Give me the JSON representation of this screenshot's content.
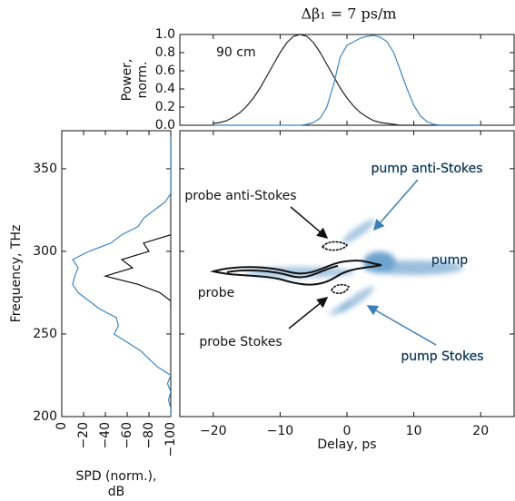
{
  "chart_data": [
    {
      "type": "line",
      "title": "Δβ₁ = 7 ps/m",
      "ylabel": [
        "Power,",
        "norm."
      ],
      "annotation": "90 cm",
      "xlim": [
        -25,
        25
      ],
      "xticks": [
        {
          "value": -20,
          "label": "−20"
        },
        {
          "value": -10,
          "label": "−10"
        },
        0,
        10,
        20
      ],
      "ylim": [
        0,
        1
      ],
      "yticks": [
        {
          "value": 0,
          "label": "0.0"
        },
        0.2,
        0.4,
        0.6,
        0.8,
        {
          "value": 1,
          "label": "1.0"
        }
      ],
      "x": [
        -20,
        -19,
        -18,
        -17,
        -16,
        -15,
        -14,
        -13,
        -12,
        -11,
        -10,
        -9,
        -8,
        -7,
        -6,
        -5,
        -4,
        -3,
        -2,
        -1,
        0,
        1,
        2,
        3,
        4,
        5,
        6,
        7,
        8,
        9,
        10,
        11,
        12,
        13,
        14,
        15,
        16,
        17,
        18,
        19,
        20
      ],
      "series": [
        {
          "color": "#222222",
          "values": [
            0.02,
            0.03,
            0.05,
            0.09,
            0.14,
            0.21,
            0.3,
            0.41,
            0.54,
            0.67,
            0.8,
            0.91,
            0.98,
            1,
            0.98,
            0.91,
            0.8,
            0.67,
            0.54,
            0.41,
            0.3,
            0.21,
            0.14,
            0.09,
            0.05,
            0.03,
            0.02,
            0.01,
            0,
            0,
            0,
            0,
            0,
            0,
            0,
            0,
            0,
            0,
            0,
            0,
            0
          ]
        },
        {
          "color": "#3f86bf",
          "values": [
            0,
            0,
            0,
            0,
            0,
            0,
            0,
            0,
            0,
            0,
            0,
            0,
            0,
            0,
            0.01,
            0.03,
            0.08,
            0.2,
            0.45,
            0.75,
            0.88,
            0.92,
            0.96,
            0.98,
            0.99,
            0.97,
            0.92,
            0.8,
            0.6,
            0.4,
            0.22,
            0.1,
            0.04,
            0.01,
            0,
            0,
            0,
            0,
            0,
            0,
            0
          ]
        }
      ]
    },
    {
      "type": "line",
      "xlabel": [
        "SPD (norm.),",
        "dB"
      ],
      "ylabel": "Frequency, THz",
      "xlim": [
        0,
        -100
      ],
      "xticks": [
        0,
        {
          "value": -20,
          "label": "−20"
        },
        {
          "value": -40,
          "label": "−40"
        },
        {
          "value": -60,
          "label": "−60"
        },
        {
          "value": -80,
          "label": "−80"
        },
        {
          "value": -100,
          "label": "−100"
        }
      ],
      "ylim": [
        200,
        373
      ],
      "yticks": [
        200,
        250,
        300,
        350
      ],
      "y": [
        200,
        205,
        210,
        215,
        220,
        225,
        230,
        235,
        240,
        245,
        250,
        255,
        260,
        265,
        270,
        275,
        280,
        285,
        290,
        295,
        300,
        305,
        310,
        315,
        320,
        325,
        330,
        335,
        340,
        345,
        350,
        355,
        360,
        365,
        370
      ],
      "series": [
        {
          "color": "#3f86bf",
          "values": [
            -100,
            -100,
            -98,
            -100,
            -97,
            -100,
            -88,
            -80,
            -72,
            -60,
            -48,
            -52,
            -50,
            -35,
            -25,
            -15,
            -10,
            -12,
            -15,
            -10,
            -25,
            -45,
            -55,
            -70,
            -75,
            -85,
            -95,
            -100,
            -100,
            -100,
            -100,
            -100,
            -100,
            -100,
            -100
          ]
        },
        {
          "color": "#111111",
          "values": [
            null,
            null,
            null,
            null,
            null,
            null,
            null,
            null,
            null,
            null,
            null,
            null,
            null,
            -100,
            -100,
            -90,
            -70,
            -40,
            -65,
            -55,
            -80,
            -75,
            -100,
            null,
            null,
            null,
            null,
            null,
            null,
            null,
            null,
            null,
            null,
            null,
            null
          ]
        }
      ]
    },
    {
      "type": "spectrogram",
      "xlabel": "Delay, ps",
      "xlim": [
        -25,
        25
      ],
      "xticks": [
        {
          "value": -20,
          "label": "−20"
        },
        {
          "value": -10,
          "label": "−10"
        },
        0,
        10,
        20
      ],
      "ylim": [
        200,
        373
      ],
      "yticks": [
        200,
        250,
        300,
        350
      ],
      "annotations": [
        {
          "text": "pump anti-Stokes",
          "color": "#3a7fb5"
        },
        {
          "text": "probe anti-Stokes",
          "color": "#111111"
        },
        {
          "text": "pump",
          "color": "#3a7fb5"
        },
        {
          "text": "probe",
          "color": "#111111"
        },
        {
          "text": "probe Stokes",
          "color": "#111111"
        },
        {
          "text": "pump Stokes",
          "color": "#3a7fb5"
        }
      ]
    }
  ]
}
